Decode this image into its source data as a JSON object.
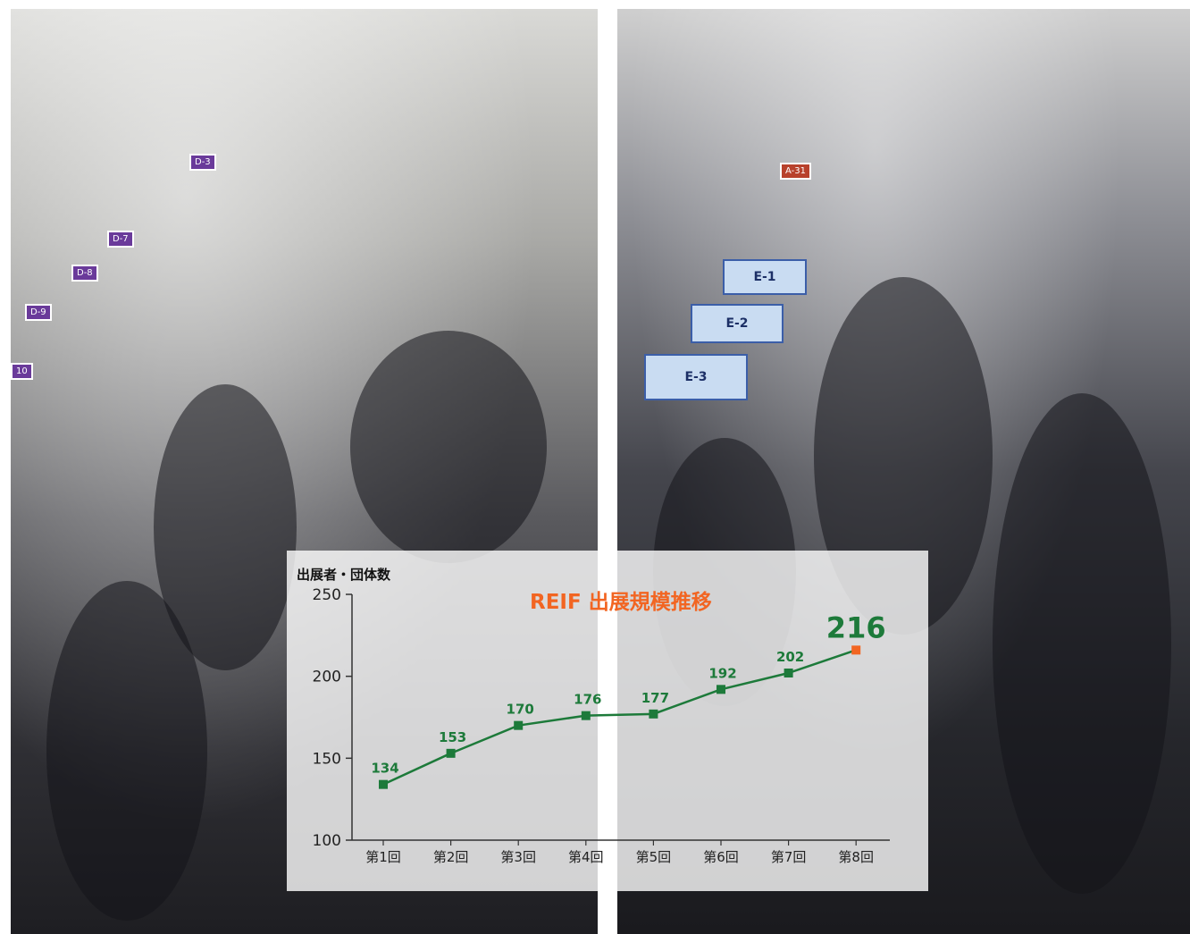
{
  "photos": {
    "booth_signs_left": [
      "D-3",
      "D-7",
      "D-8",
      "D-9",
      "10"
    ],
    "booth_signs_right": [
      "E-1",
      "E-2",
      "E-3",
      "A-31"
    ]
  },
  "chart_data": {
    "type": "line",
    "title": "REIF 出展規模推移",
    "ylabel": "出展者・団体数",
    "xlabel": "",
    "categories": [
      "第1回",
      "第2回",
      "第3回",
      "第4回",
      "第5回",
      "第6回",
      "第7回",
      "第8回"
    ],
    "values": [
      134,
      153,
      170,
      176,
      177,
      192,
      202,
      216
    ],
    "ylim": [
      100,
      250
    ],
    "yticks": [
      100,
      150,
      200,
      250
    ],
    "grid": false,
    "legend": "none",
    "colors": {
      "line": "#1d7a3a",
      "label": "#1d7a3a",
      "highlight_marker": "#f26522",
      "title": "#f26522",
      "axis": "#333333"
    }
  }
}
